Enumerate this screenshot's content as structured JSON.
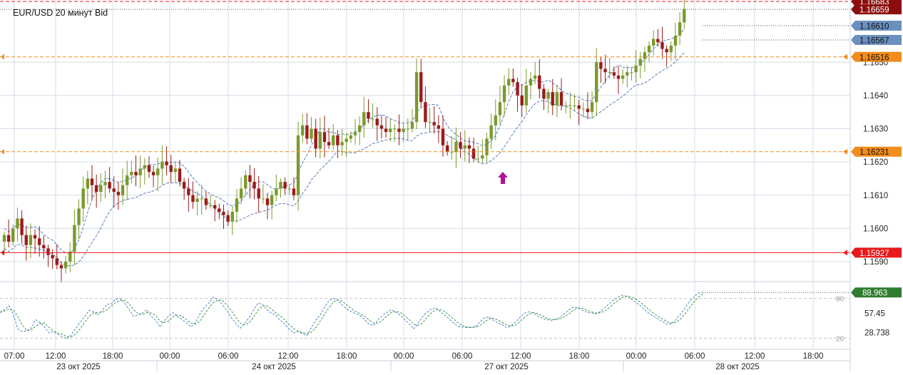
{
  "chart_title": "EUR/USD  20 минут Bid",
  "colors": {
    "up": "#7a9a2e",
    "down": "#9b1b1b",
    "red_line": "#e8191b",
    "orange_line": "#f28c1c",
    "ma_line": "#4a6fb5",
    "stoch_k": "#3a7ac0",
    "stoch_d": "#2e8b2e",
    "grid": "#d4dbe6",
    "axis_text": "#222222",
    "marker": "#b0129b",
    "blue_tag": "#6b8fbf",
    "green_tag": "#2f7d2f",
    "dark_red_tag": "#8b0e0e"
  },
  "chart_data": [
    {
      "type": "candlestick",
      "title": "EUR/USD  20 минут Bid",
      "ylim": [
        1.1584,
        1.1667
      ],
      "price_ticks": [
        "1.1590",
        "1.1600",
        "1.1610",
        "1.1620",
        "1.1630",
        "1.1640",
        "1.1650"
      ],
      "time_ticks": [
        "07:00",
        "12:00",
        "18:00",
        "00:00",
        "06:00",
        "12:00",
        "18:00",
        "00:00",
        "06:00",
        "12:00",
        "18:00",
        "00:00",
        "06:00",
        "12:00",
        "18:00"
      ],
      "date_labels": [
        "23 окт 2025",
        "24 окт 2025",
        "27 окт 2025",
        "28 окт 2025"
      ],
      "horizontal_levels": [
        {
          "value": 1.16683,
          "label": "1.16683",
          "style": "dashed-red"
        },
        {
          "value": 1.16659,
          "label": "1.16659",
          "style": "dotted-dark"
        },
        {
          "value": 1.1661,
          "label": "1.16610",
          "style": "dotted-blue"
        },
        {
          "value": 1.16567,
          "label": "1.16567",
          "style": "dotted-blue"
        },
        {
          "value": 1.16516,
          "label": "1.16516",
          "style": "dashed-orange"
        },
        {
          "value": 1.16231,
          "label": "1.16231",
          "style": "dashed-orange"
        },
        {
          "value": 1.15927,
          "label": "1.15927",
          "style": "solid-red"
        }
      ],
      "close_series": [
        1.1598,
        1.1596,
        1.16,
        1.1603,
        1.1598,
        1.1595,
        1.1598,
        1.1597,
        1.1595,
        1.1594,
        1.1592,
        1.1591,
        1.1589,
        1.1588,
        1.159,
        1.1593,
        1.1601,
        1.1606,
        1.1612,
        1.1615,
        1.1613,
        1.1611,
        1.1613,
        1.1614,
        1.1612,
        1.1611,
        1.161,
        1.1613,
        1.1616,
        1.1617,
        1.1616,
        1.1618,
        1.1619,
        1.1617,
        1.1616,
        1.1618,
        1.162,
        1.1619,
        1.1617,
        1.1618,
        1.1614,
        1.1612,
        1.161,
        1.1608,
        1.1609,
        1.1609,
        1.1607,
        1.1607,
        1.1606,
        1.1605,
        1.1604,
        1.1602,
        1.1605,
        1.1609,
        1.1612,
        1.1616,
        1.1614,
        1.1612,
        1.1609,
        1.1609,
        1.1607,
        1.161,
        1.1612,
        1.1614,
        1.1612,
        1.1612,
        1.161,
        1.1628,
        1.1631,
        1.1627,
        1.163,
        1.1624,
        1.1629,
        1.1626,
        1.1625,
        1.1628,
        1.1625,
        1.1626,
        1.1627,
        1.1628,
        1.1629,
        1.1631,
        1.1635,
        1.1633,
        1.1633,
        1.1631,
        1.163,
        1.1629,
        1.163,
        1.163,
        1.1629,
        1.163,
        1.163,
        1.1632,
        1.1647,
        1.1638,
        1.1632,
        1.1632,
        1.1631,
        1.163,
        1.1625,
        1.1623,
        1.1623,
        1.1626,
        1.1624,
        1.1625,
        1.1624,
        1.1621,
        1.1621,
        1.1622,
        1.1627,
        1.1631,
        1.1634,
        1.1638,
        1.1643,
        1.1645,
        1.1644,
        1.164,
        1.1637,
        1.1643,
        1.1645,
        1.1646,
        1.1642,
        1.1639,
        1.1641,
        1.1637,
        1.1641,
        1.1637,
        1.1637,
        1.1637,
        1.1637,
        1.1636,
        1.1636,
        1.1635,
        1.1638,
        1.165,
        1.1648,
        1.1647,
        1.1647,
        1.1646,
        1.1645,
        1.1646,
        1.1647,
        1.1647,
        1.1649,
        1.1651,
        1.1653,
        1.1655,
        1.1657,
        1.1656,
        1.1654,
        1.1653,
        1.1655,
        1.1658,
        1.1662,
        1.1666
      ],
      "stochastic": {
        "ylim": [
          0,
          100
        ],
        "levels": [
          20,
          80
        ],
        "ticks": [
          "57.45",
          "28.738"
        ],
        "level_labels": [
          "80",
          "20"
        ],
        "current_value": "88.963",
        "k_series": [
          59,
          63,
          69,
          56,
          34,
          30,
          31,
          35,
          48,
          44,
          37,
          28,
          30,
          26,
          22,
          19,
          25,
          34,
          44,
          52,
          62,
          60,
          55,
          62,
          71,
          72,
          79,
          80,
          73,
          64,
          53,
          55,
          58,
          63,
          53,
          47,
          37,
          47,
          54,
          59,
          52,
          48,
          43,
          37,
          44,
          57,
          67,
          73,
          82,
          78,
          71,
          62,
          51,
          43,
          35,
          42,
          51,
          62,
          73,
          71,
          63,
          58,
          55,
          47,
          42,
          34,
          28,
          30,
          27,
          24,
          36,
          47,
          55,
          67,
          77,
          80,
          77,
          70,
          64,
          60,
          57,
          54,
          48,
          41,
          39,
          48,
          54,
          59,
          63,
          59,
          55,
          48,
          42,
          34,
          42,
          52,
          59,
          64,
          66,
          60,
          55,
          49,
          43,
          38,
          37,
          36,
          36,
          38,
          45,
          51,
          52,
          47,
          43,
          40,
          36,
          39,
          45,
          52,
          58,
          60,
          58,
          53,
          50,
          48,
          47,
          49,
          52,
          57,
          63,
          67,
          66,
          62,
          59,
          58,
          57,
          60,
          66,
          72,
          78,
          82,
          85,
          83,
          79,
          74,
          69,
          63,
          57,
          53,
          49,
          45,
          41,
          42,
          48,
          56,
          65,
          75,
          82,
          88,
          89
        ]
      }
    }
  ]
}
